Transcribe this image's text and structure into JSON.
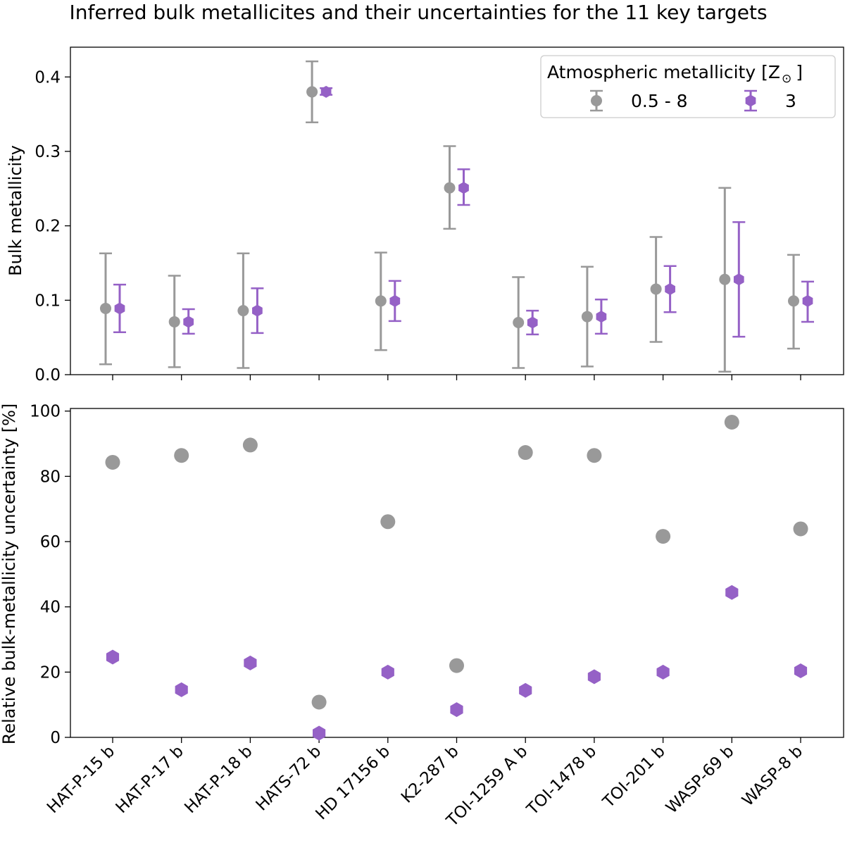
{
  "title": "Inferred bulk metallicites and their uncertainties for the 11 key targets",
  "colors": {
    "grey": "#999999",
    "purple": "#9561c6"
  },
  "chart_data": [
    {
      "type": "scatter",
      "subtype": "errorbar",
      "ylabel": "Bulk metallicity",
      "ylim": [
        0.0,
        0.44
      ],
      "yticks": [
        0.0,
        0.1,
        0.2,
        0.3,
        0.4
      ],
      "ytick_labels": [
        "0.0",
        "0.1",
        "0.2",
        "0.3",
        "0.4"
      ],
      "legend": {
        "title_prefix": "Atmospheric metallicity [Z",
        "title_symbol": "⊙",
        "title_suffix": "]",
        "position": "top-right"
      },
      "series": [
        {
          "name": "0.5 - 8",
          "marker": "circle",
          "color": "grey",
          "values": [
            0.089,
            0.071,
            0.086,
            0.38,
            0.099,
            0.251,
            0.07,
            0.078,
            0.115,
            0.128,
            0.099
          ],
          "lower": [
            0.014,
            0.01,
            0.009,
            0.339,
            0.033,
            0.196,
            0.009,
            0.011,
            0.044,
            0.004,
            0.035
          ],
          "upper": [
            0.163,
            0.133,
            0.163,
            0.421,
            0.164,
            0.307,
            0.131,
            0.145,
            0.185,
            0.251,
            0.161
          ]
        },
        {
          "name": "3",
          "marker": "hexagon",
          "color": "purple",
          "values": [
            0.089,
            0.071,
            0.086,
            0.38,
            0.099,
            0.251,
            0.07,
            0.078,
            0.115,
            0.128,
            0.099
          ],
          "lower": [
            0.057,
            0.055,
            0.056,
            0.376,
            0.072,
            0.228,
            0.054,
            0.055,
            0.084,
            0.051,
            0.071
          ],
          "upper": [
            0.121,
            0.088,
            0.116,
            0.385,
            0.126,
            0.276,
            0.086,
            0.101,
            0.146,
            0.205,
            0.125
          ]
        }
      ]
    },
    {
      "type": "scatter",
      "ylabel": "Relative bulk-metallicity uncertainty [%]",
      "xlabel": "",
      "ylim": [
        0,
        100.8
      ],
      "yticks": [
        0,
        20,
        40,
        60,
        80,
        100
      ],
      "ytick_labels": [
        "0",
        "20",
        "40",
        "60",
        "80",
        "100"
      ],
      "categories": [
        "HAT-P-15 b",
        "HAT-P-17 b",
        "HAT-P-18 b",
        "HATS-72 b",
        "HD 17156 b",
        "K2-287 b",
        "TOI-1259 A b",
        "TOI-1478 b",
        "TOI-201 b",
        "WASP-69 b",
        "WASP-8 b"
      ],
      "series": [
        {
          "name": "0.5 - 8",
          "marker": "circle",
          "color": "grey",
          "values": [
            84.3,
            86.4,
            89.6,
            10.8,
            66.1,
            22.0,
            87.3,
            86.4,
            61.6,
            96.6,
            63.9
          ]
        },
        {
          "name": "3",
          "marker": "hexagon",
          "color": "purple",
          "values": [
            24.6,
            14.6,
            22.8,
            1.3,
            20.0,
            8.5,
            14.4,
            18.6,
            20.0,
            44.4,
            20.4
          ]
        }
      ]
    }
  ]
}
